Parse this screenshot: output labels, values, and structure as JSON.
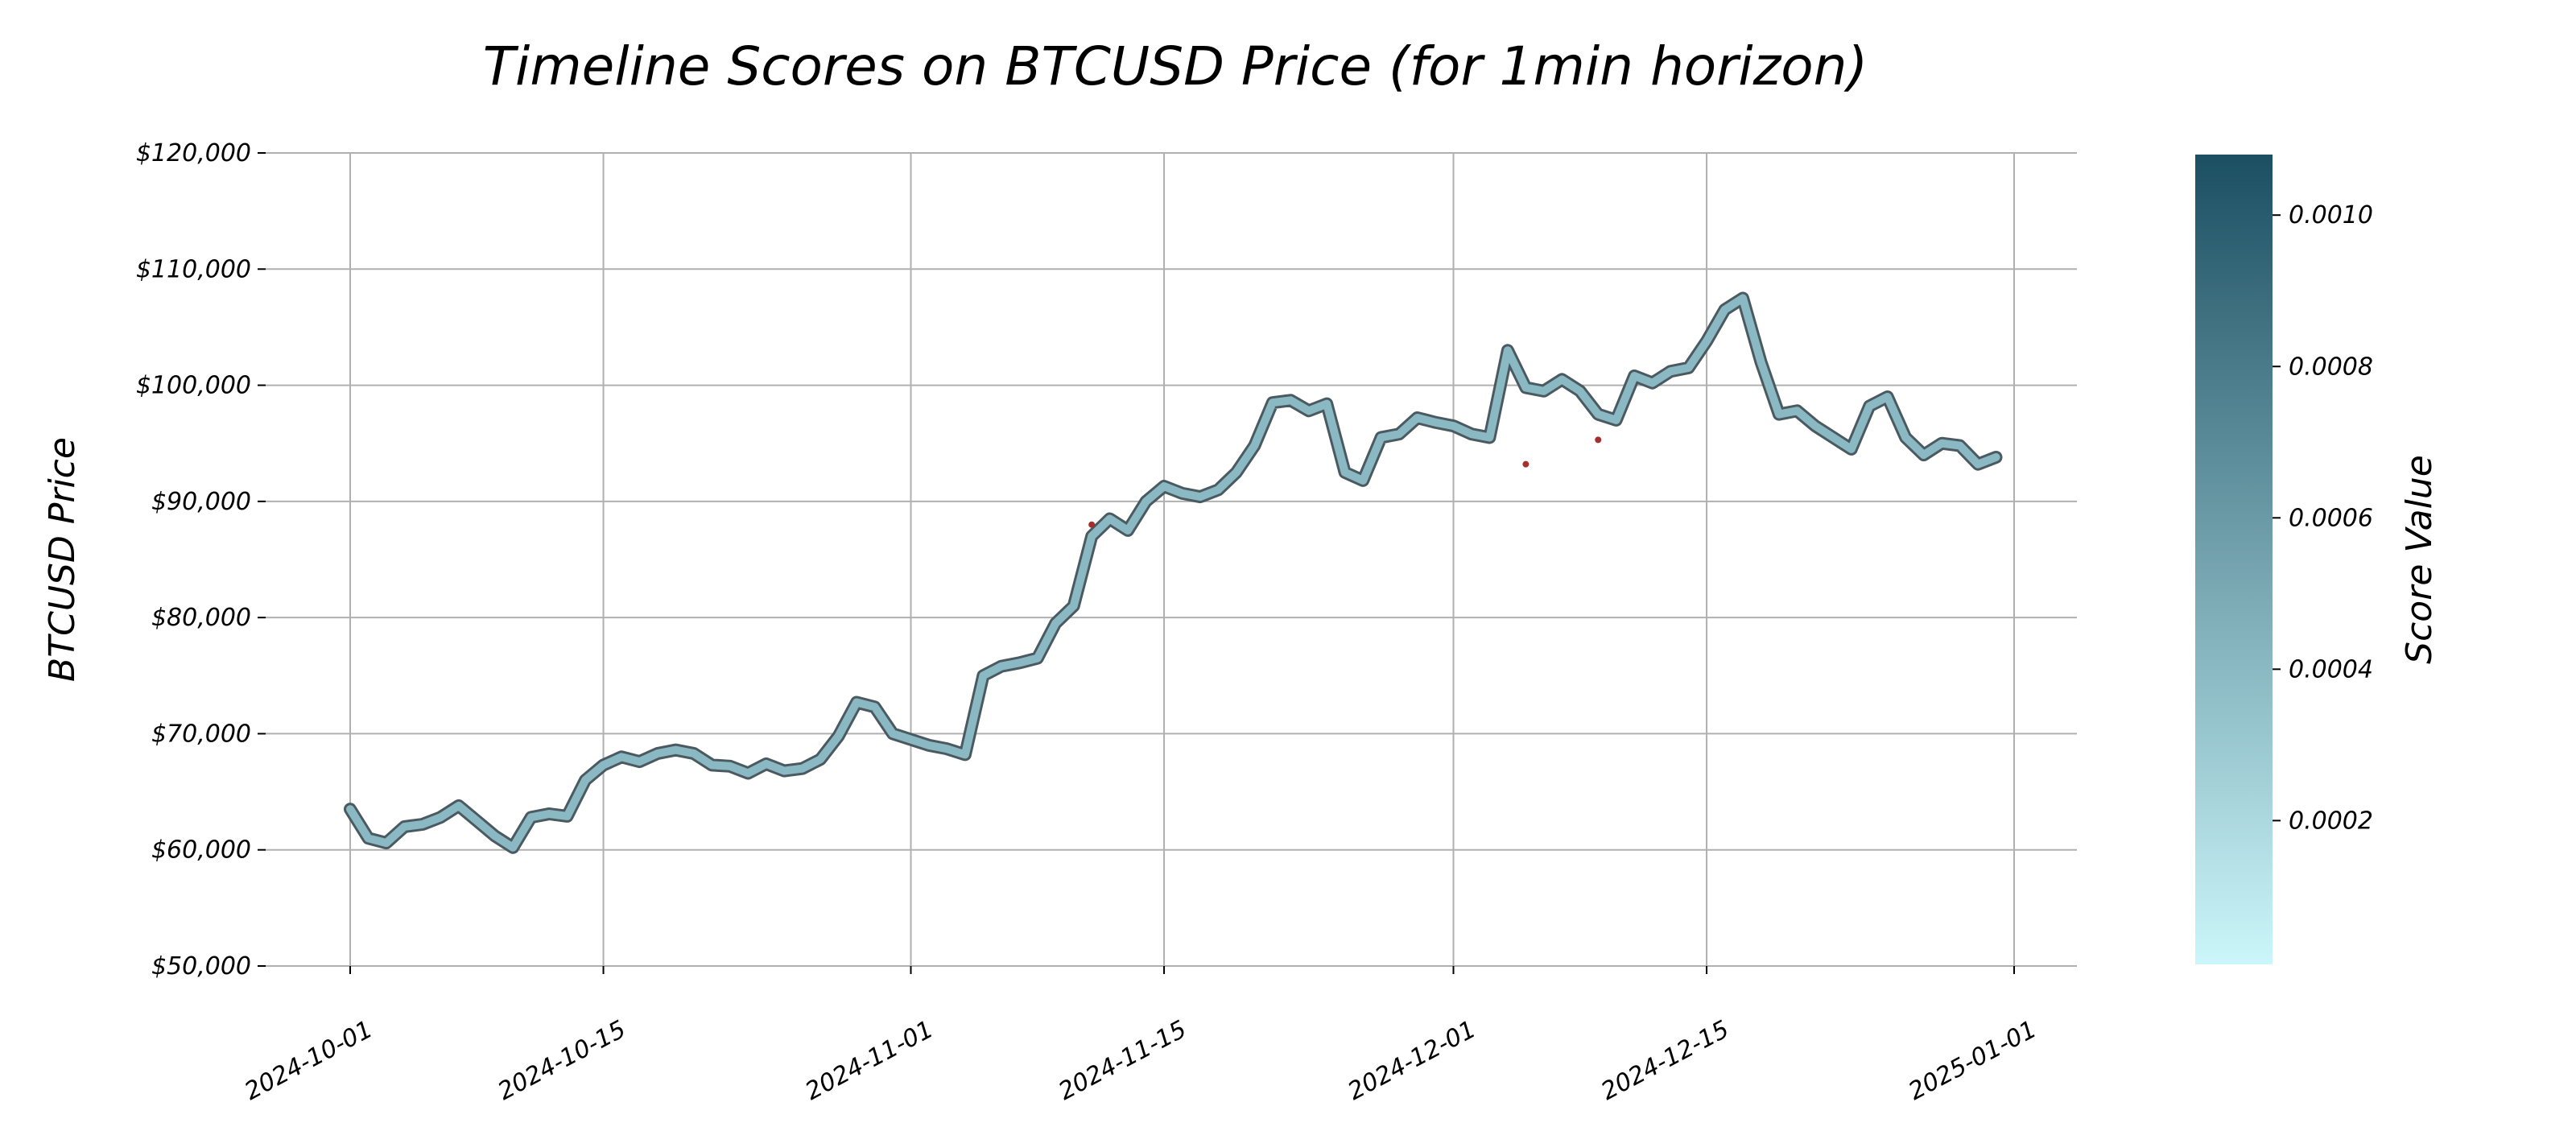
{
  "chart_data": {
    "type": "line",
    "title": "Timeline Scores on BTCUSD Price (for 1min horizon)",
    "xlabel": "",
    "ylabel": "BTCUSD Price",
    "colorbar_label": "Score Value",
    "x_tick_labels": [
      "2024-10-01",
      "2024-10-15",
      "2024-11-01",
      "2024-11-15",
      "2024-12-01",
      "2024-12-15",
      "2025-01-01"
    ],
    "y_tick_labels": [
      "$50,000",
      "$60,000",
      "$70,000",
      "$80,000",
      "$90,000",
      "$100,000",
      "$110,000",
      "$120,000"
    ],
    "y_ticks": [
      50000,
      60000,
      70000,
      80000,
      90000,
      100000,
      110000,
      120000
    ],
    "x_ticks": [
      "2024-10-01",
      "2024-10-15",
      "2024-11-01",
      "2024-11-15",
      "2024-12-01",
      "2024-12-15",
      "2025-01-01"
    ],
    "xlim": [
      "2024-10-01",
      "2025-01-04"
    ],
    "ylim": [
      50000,
      120000
    ],
    "colorbar_ticks": [
      0.0002,
      0.0004,
      0.0006,
      0.0008,
      0.001
    ],
    "colorbar_tick_labels": [
      "0.0002",
      "0.0004",
      "0.0006",
      "0.0008",
      "0.0010"
    ],
    "colorbar_range": [
      1e-05,
      0.00108
    ],
    "colormap": [
      "#cbf6fa",
      "#1b4f62"
    ],
    "grid": true,
    "line_color": "#8ab9c3",
    "outline_color": "#4b5a60",
    "highlight_color": "#a32f2f",
    "series": [
      {
        "x": [
          "2024-10-01",
          "2024-10-02",
          "2024-10-03",
          "2024-10-04",
          "2024-10-05",
          "2024-10-06",
          "2024-10-07",
          "2024-10-08",
          "2024-10-09",
          "2024-10-10",
          "2024-10-11",
          "2024-10-12",
          "2024-10-13",
          "2024-10-14",
          "2024-10-15",
          "2024-10-16",
          "2024-10-17",
          "2024-10-18",
          "2024-10-19",
          "2024-10-20",
          "2024-10-21",
          "2024-10-22",
          "2024-10-23",
          "2024-10-24",
          "2024-10-25",
          "2024-10-26",
          "2024-10-27",
          "2024-10-28",
          "2024-10-29",
          "2024-10-30",
          "2024-10-31",
          "2024-11-01",
          "2024-11-02",
          "2024-11-03",
          "2024-11-04",
          "2024-11-05",
          "2024-11-06",
          "2024-11-07",
          "2024-11-08",
          "2024-11-09",
          "2024-11-10",
          "2024-11-11",
          "2024-11-12",
          "2024-11-13",
          "2024-11-14",
          "2024-11-15",
          "2024-11-16",
          "2024-11-17",
          "2024-11-18",
          "2024-11-19",
          "2024-11-20",
          "2024-11-21",
          "2024-11-22",
          "2024-11-23",
          "2024-11-24",
          "2024-11-25",
          "2024-11-26",
          "2024-11-27",
          "2024-11-28",
          "2024-11-29",
          "2024-11-30",
          "2024-12-01",
          "2024-12-02",
          "2024-12-03",
          "2024-12-04",
          "2024-12-05",
          "2024-12-06",
          "2024-12-07",
          "2024-12-08",
          "2024-12-09",
          "2024-12-10",
          "2024-12-11",
          "2024-12-12",
          "2024-12-13",
          "2024-12-14",
          "2024-12-15",
          "2024-12-16",
          "2024-12-17",
          "2024-12-18",
          "2024-12-19",
          "2024-12-20",
          "2024-12-21",
          "2024-12-22",
          "2024-12-23",
          "2024-12-24",
          "2024-12-25",
          "2024-12-26",
          "2024-12-27",
          "2024-12-28",
          "2024-12-29",
          "2024-12-30",
          "2024-12-31"
        ],
        "y": [
          63500,
          61000,
          60600,
          62000,
          62200,
          62800,
          63800,
          62500,
          61200,
          60200,
          62800,
          63100,
          62900,
          66000,
          67300,
          68000,
          67600,
          68300,
          68600,
          68300,
          67300,
          67200,
          66600,
          67400,
          66800,
          67000,
          67800,
          69800,
          72700,
          72300,
          70000,
          69500,
          69000,
          68700,
          68200,
          75000,
          75800,
          76100,
          76500,
          79500,
          81000,
          87000,
          88500,
          87500,
          90000,
          91300,
          90700,
          90400,
          91000,
          92500,
          94800,
          98500,
          98700,
          97800,
          98400,
          92500,
          91800,
          95500,
          95800,
          97200,
          96800,
          96500,
          95800,
          95500,
          103000,
          99800,
          99500,
          100500,
          99500,
          97500,
          97000,
          100800,
          100200,
          101200,
          101500,
          103800,
          106500,
          107500,
          102000,
          97500,
          97800,
          96500,
          95500,
          94500,
          98200,
          99000,
          95500,
          94000,
          95000,
          94800,
          93200,
          93800
        ]
      }
    ],
    "annotations_dips": [
      {
        "x": "2024-12-05",
        "y": 93200
      },
      {
        "x": "2024-12-09",
        "y": 95300
      },
      {
        "x": "2024-11-11",
        "y": 88000
      }
    ]
  }
}
